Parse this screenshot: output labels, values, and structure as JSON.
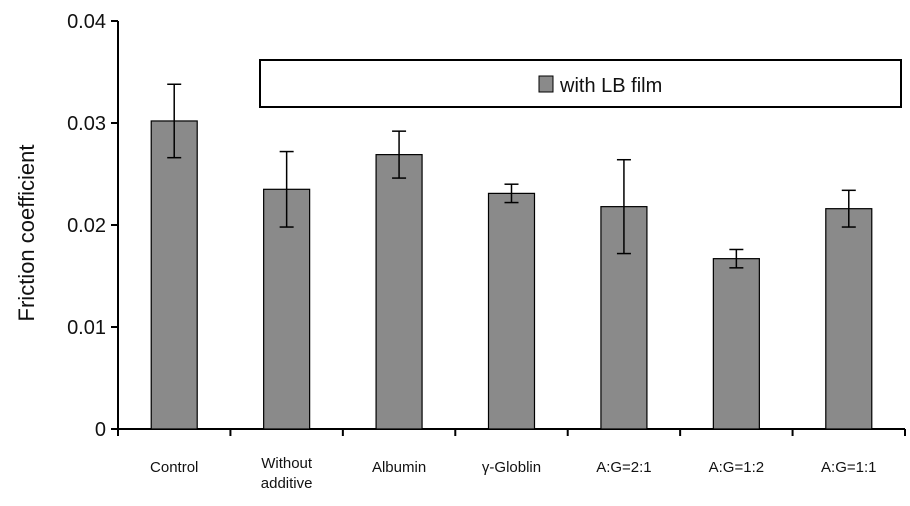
{
  "chart_data": {
    "type": "bar",
    "title": "",
    "xlabel": "",
    "ylabel": "Friction coefficient",
    "ylim": [
      0,
      0.04
    ],
    "yticks": [
      "0",
      "0.01",
      "0.02",
      "0.03",
      "0.04"
    ],
    "categories": [
      "Control",
      "Without additive",
      "Albumin",
      "γ-Globlin",
      "A:G=2:1",
      "A:G=1:2",
      "A:G=1:1"
    ],
    "category_lines": [
      [
        "Control"
      ],
      [
        "Without",
        "additive"
      ],
      [
        "Albumin"
      ],
      [
        "γ-Globlin"
      ],
      [
        "A:G=2:1"
      ],
      [
        "A:G=1:2"
      ],
      [
        "A:G=1:1"
      ]
    ],
    "series": [
      {
        "name": "with LB film",
        "values": [
          0.0302,
          0.0235,
          0.0269,
          0.0231,
          0.0218,
          0.0167,
          0.0216
        ],
        "errors": [
          0.0036,
          0.0037,
          0.0023,
          0.0009,
          0.0046,
          0.0009,
          0.0018
        ],
        "color": "#8a8a8a"
      }
    ],
    "legend": {
      "label": "with LB film",
      "position": "top"
    },
    "grid": false
  }
}
